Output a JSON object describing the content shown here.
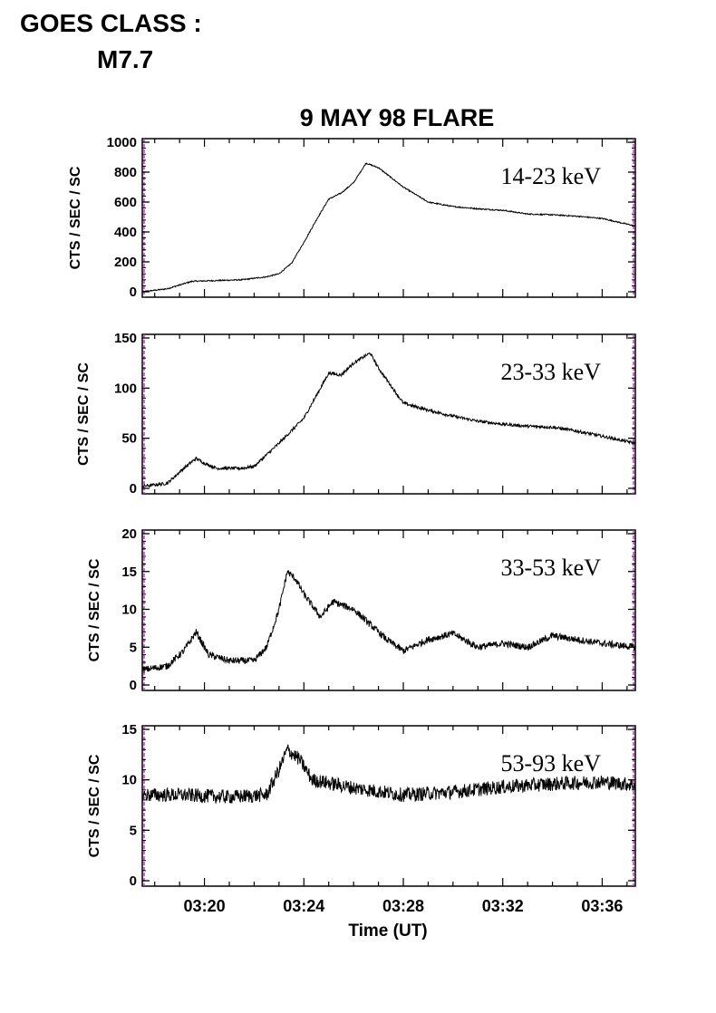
{
  "header": {
    "goes_line1": "GOES CLASS :",
    "goes_line2": "M7.7"
  },
  "chart_data": {
    "type": "line",
    "title": "9 MAY 98 FLARE",
    "xlabel": "Time (UT)",
    "xlim": [
      "03:17:30",
      "03:37:20"
    ],
    "x_ticks": [
      "03:20",
      "03:24",
      "03:28",
      "03:32",
      "03:36"
    ],
    "colors": {
      "line": "#000000",
      "edge_marker": "#cc33cc"
    },
    "panels": [
      {
        "ylabel": "CTS / SEC / SC",
        "annotation": "14-23 keV",
        "ylim": [
          0,
          1000
        ],
        "y_ticks": [
          0,
          200,
          400,
          600,
          800,
          1000
        ],
        "noise": 4,
        "series": {
          "x": [
            "03:17:30",
            "03:18:30",
            "03:19:30",
            "03:20:30",
            "03:21:30",
            "03:22:30",
            "03:23:00",
            "03:23:30",
            "03:24:00",
            "03:24:30",
            "03:25:00",
            "03:25:30",
            "03:26:00",
            "03:26:30",
            "03:27:00",
            "03:28:00",
            "03:29:00",
            "03:30:00",
            "03:31:00",
            "03:32:00",
            "03:33:00",
            "03:34:00",
            "03:35:00",
            "03:36:00",
            "03:37:20"
          ],
          "y": [
            0,
            20,
            70,
            75,
            80,
            100,
            120,
            190,
            330,
            480,
            620,
            660,
            730,
            860,
            830,
            700,
            600,
            570,
            555,
            545,
            520,
            515,
            505,
            490,
            440
          ]
        }
      },
      {
        "ylabel": "CTS / SEC / SC",
        "annotation": "23-33 keV",
        "ylim": [
          0,
          150
        ],
        "y_ticks": [
          0,
          50,
          100,
          150
        ],
        "noise": 1.5,
        "series": {
          "x": [
            "03:17:30",
            "03:18:30",
            "03:19:10",
            "03:19:40",
            "03:20:00",
            "03:20:30",
            "03:21:30",
            "03:22:00",
            "03:23:00",
            "03:24:00",
            "03:25:00",
            "03:25:30",
            "03:26:00",
            "03:26:40",
            "03:27:00",
            "03:28:00",
            "03:29:00",
            "03:30:00",
            "03:31:00",
            "03:32:00",
            "03:33:00",
            "03:34:00",
            "03:35:00",
            "03:36:00",
            "03:37:20"
          ],
          "y": [
            2,
            5,
            20,
            30,
            25,
            20,
            20,
            22,
            45,
            70,
            115,
            113,
            125,
            135,
            120,
            85,
            78,
            72,
            67,
            64,
            62,
            61,
            57,
            52,
            45
          ]
        }
      },
      {
        "ylabel": "CTS / SEC / SC",
        "annotation": "33-53 keV",
        "ylim": [
          0,
          20
        ],
        "y_ticks": [
          0,
          5,
          10,
          15,
          20
        ],
        "noise": 0.45,
        "series": {
          "x": [
            "03:17:30",
            "03:18:30",
            "03:19:10",
            "03:19:40",
            "03:20:10",
            "03:21:00",
            "03:22:00",
            "03:22:30",
            "03:23:00",
            "03:23:20",
            "03:23:40",
            "03:24:00",
            "03:24:40",
            "03:25:10",
            "03:26:00",
            "03:26:40",
            "03:27:20",
            "03:28:00",
            "03:29:00",
            "03:30:00",
            "03:31:00",
            "03:32:00",
            "03:33:00",
            "03:34:00",
            "03:35:00",
            "03:36:00",
            "03:37:20"
          ],
          "y": [
            2,
            2.5,
            4.5,
            7,
            4,
            3.2,
            3.2,
            5,
            10,
            15,
            14,
            12,
            9,
            11,
            10,
            8,
            6,
            4.5,
            6,
            6.8,
            5,
            5.5,
            5,
            6.5,
            6,
            5.5,
            5
          ]
        }
      },
      {
        "ylabel": "CTS / SEC / SC",
        "annotation": "53-93 keV",
        "ylim": [
          0,
          15
        ],
        "y_ticks": [
          0,
          5,
          10,
          15
        ],
        "noise": 0.7,
        "series": {
          "x": [
            "03:17:30",
            "03:19:00",
            "03:21:00",
            "03:22:30",
            "03:23:00",
            "03:23:20",
            "03:23:50",
            "03:24:20",
            "03:26:00",
            "03:28:00",
            "03:30:00",
            "03:32:00",
            "03:34:00",
            "03:36:00",
            "03:37:20"
          ],
          "y": [
            8.5,
            8.5,
            8.3,
            8.5,
            11,
            13,
            12,
            10,
            9.2,
            8.5,
            8.8,
            9.3,
            9.6,
            9.8,
            9.5
          ]
        }
      }
    ]
  }
}
